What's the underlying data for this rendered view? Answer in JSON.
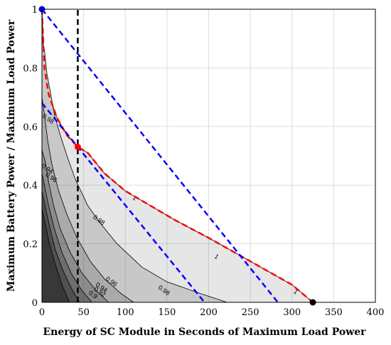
{
  "chart_data": {
    "type": "contour",
    "xlabel": "Energy of SC Module in Seconds of Maximum Load Power",
    "ylabel": "Maximum Battery Power / Maximum Load Power",
    "xlim": [
      0,
      400
    ],
    "ylim": [
      0,
      1
    ],
    "x_ticks": [
      "0",
      "50",
      "100",
      "150",
      "200",
      "250",
      "300",
      "350",
      "400"
    ],
    "y_ticks": [
      "0",
      "0.2",
      "0.4",
      "0.6",
      "0.8",
      "1"
    ],
    "grid": true,
    "contour_fill_levels": [
      {
        "color": "#e6e6e6",
        "boundary": [
          [
            325,
            0
          ],
          [
            300,
            0.06
          ],
          [
            250,
            0.14
          ],
          [
            200,
            0.22
          ],
          [
            160,
            0.28
          ],
          [
            130,
            0.33
          ],
          [
            100,
            0.38
          ],
          [
            75,
            0.44
          ],
          [
            55,
            0.51
          ],
          [
            43,
            0.53
          ],
          [
            30,
            0.57
          ],
          [
            18,
            0.63
          ],
          [
            8,
            0.71
          ],
          [
            3,
            0.8
          ],
          [
            1,
            0.93
          ],
          [
            0,
            1
          ]
        ]
      },
      {
        "color": "#c8c8c8",
        "boundary": [
          [
            222,
            0
          ],
          [
            190,
            0.03
          ],
          [
            150,
            0.07
          ],
          [
            120,
            0.12
          ],
          [
            90,
            0.2
          ],
          [
            70,
            0.27
          ],
          [
            55,
            0.33
          ],
          [
            40,
            0.42
          ],
          [
            30,
            0.5
          ],
          [
            22,
            0.57
          ],
          [
            15,
            0.64
          ],
          [
            10,
            0.72
          ],
          [
            6,
            0.78
          ],
          [
            3,
            0.86
          ],
          [
            0,
            0.9
          ]
        ]
      },
      {
        "color": "#aaaaaa",
        "boundary": [
          [
            110,
            0
          ],
          [
            95,
            0.03
          ],
          [
            75,
            0.08
          ],
          [
            58,
            0.14
          ],
          [
            42,
            0.22
          ],
          [
            30,
            0.3
          ],
          [
            20,
            0.38
          ],
          [
            12,
            0.47
          ],
          [
            7,
            0.55
          ],
          [
            3,
            0.64
          ],
          [
            0,
            0.7
          ]
        ]
      },
      {
        "color": "#8c8c8c",
        "boundary": [
          [
            80,
            0
          ],
          [
            65,
            0.04
          ],
          [
            48,
            0.1
          ],
          [
            34,
            0.17
          ],
          [
            22,
            0.25
          ],
          [
            14,
            0.33
          ],
          [
            8,
            0.41
          ],
          [
            4,
            0.48
          ],
          [
            0,
            0.52
          ]
        ]
      },
      {
        "color": "#6e6e6e",
        "boundary": [
          [
            60,
            0
          ],
          [
            48,
            0.04
          ],
          [
            35,
            0.1
          ],
          [
            24,
            0.17
          ],
          [
            15,
            0.25
          ],
          [
            8,
            0.33
          ],
          [
            3,
            0.4
          ],
          [
            0,
            0.44
          ]
        ]
      },
      {
        "color": "#505050",
        "boundary": [
          [
            45,
            0
          ],
          [
            35,
            0.05
          ],
          [
            25,
            0.11
          ],
          [
            16,
            0.18
          ],
          [
            9,
            0.26
          ],
          [
            3,
            0.34
          ],
          [
            0,
            0.38
          ]
        ]
      },
      {
        "color": "#383838",
        "boundary": [
          [
            33,
            0
          ],
          [
            24,
            0.06
          ],
          [
            16,
            0.13
          ],
          [
            9,
            0.2
          ],
          [
            3,
            0.28
          ],
          [
            0,
            0.32
          ]
        ]
      }
    ],
    "contour_labels": [
      {
        "text": "0.98",
        "x": 6,
        "y": 0.62
      },
      {
        "text": "0.98",
        "x": 67,
        "y": 0.275
      },
      {
        "text": "0.98",
        "x": 145,
        "y": 0.035
      },
      {
        "text": "0.96",
        "x": 10,
        "y": 0.42
      },
      {
        "text": "0.96",
        "x": 82,
        "y": 0.065
      },
      {
        "text": "0.94",
        "x": 5,
        "y": 0.45
      },
      {
        "text": "0.94",
        "x": 70,
        "y": 0.045
      },
      {
        "text": "0.92",
        "x": 68,
        "y": 0.03
      },
      {
        "text": "0.9",
        "x": 60,
        "y": 0.02
      },
      {
        "text": "1",
        "x": 110,
        "y": 0.35
      },
      {
        "text": "1",
        "x": 208,
        "y": 0.15
      },
      {
        "text": "1",
        "x": 303,
        "y": 0.03
      }
    ],
    "series": [
      {
        "style": "dashed",
        "color": "#ff0000",
        "x": [
          0,
          1,
          3,
          8,
          18,
          30,
          43,
          55,
          75,
          100,
          130,
          160,
          200,
          250,
          300,
          325
        ],
        "y": [
          1.0,
          0.93,
          0.8,
          0.71,
          0.63,
          0.57,
          0.53,
          0.51,
          0.44,
          0.38,
          0.33,
          0.28,
          0.22,
          0.14,
          0.06,
          0.0
        ]
      },
      {
        "style": "dashed",
        "color": "#0000ff",
        "x": [
          0,
          283
        ],
        "y": [
          1.0,
          0.0
        ]
      },
      {
        "style": "dashed",
        "color": "#0000ff",
        "x": [
          0,
          195
        ],
        "y": [
          0.68,
          0.0
        ]
      },
      {
        "style": "dashed",
        "color": "#000000",
        "x": [
          43,
          43
        ],
        "y": [
          0,
          1
        ]
      }
    ],
    "markers": [
      {
        "x": 0,
        "y": 1.0,
        "color": "#0000ff"
      },
      {
        "x": 43,
        "y": 0.53,
        "color": "#ff0000"
      },
      {
        "x": 325,
        "y": 0.0,
        "color": "#000000"
      }
    ]
  }
}
